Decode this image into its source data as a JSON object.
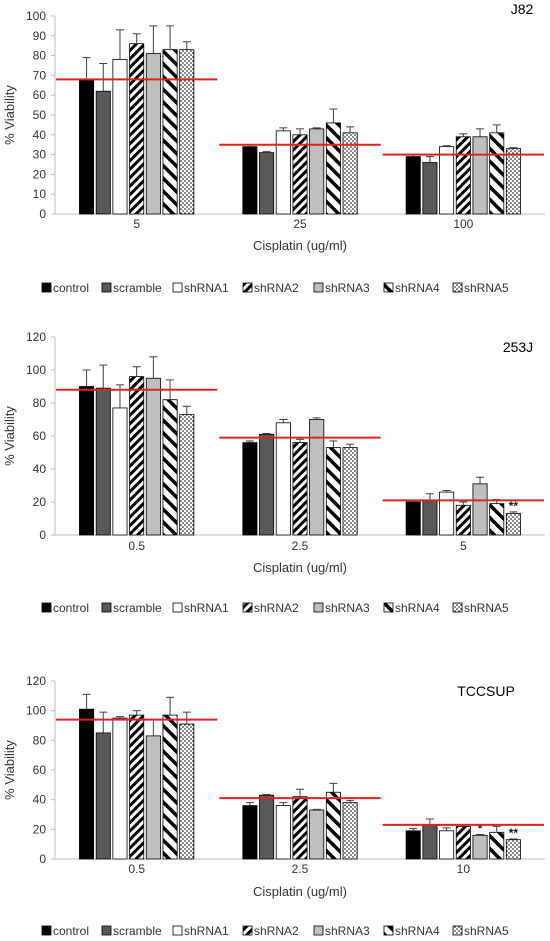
{
  "colors": {
    "control": "#000000",
    "scramble": "#595959",
    "shRNA1": "#ffffff",
    "shRNA2": "diagonal-stripes",
    "shRNA3": "#bfbfbf",
    "shRNA4": "wide-diagonal-stripes",
    "shRNA5": "dots",
    "reference_line": "#e32020",
    "axis": "#bfbfbf",
    "error_bar": "#404040"
  },
  "chart_data": [
    {
      "type": "bar",
      "title": "J82",
      "xlabel": "Cisplatin (ug/ml)",
      "ylabel": "% Viability",
      "ylim": [
        0,
        100
      ],
      "yticks": [
        "0",
        "10",
        "20",
        "30",
        "40",
        "50",
        "60",
        "70",
        "80",
        "90",
        "100"
      ],
      "categories": [
        "5",
        "25",
        "100"
      ],
      "series": [
        {
          "name": "control",
          "values": [
            68,
            34,
            29
          ],
          "errors": [
            11,
            1,
            1
          ]
        },
        {
          "name": "scramble",
          "values": [
            62,
            31,
            26
          ],
          "errors": [
            14,
            0.5,
            3
          ]
        },
        {
          "name": "shRNA1",
          "values": [
            78,
            42,
            34
          ],
          "errors": [
            15,
            1.5,
            0.5
          ]
        },
        {
          "name": "shRNA2",
          "values": [
            86,
            40,
            39
          ],
          "errors": [
            5,
            3,
            1.5
          ]
        },
        {
          "name": "shRNA3",
          "values": [
            81,
            43,
            39
          ],
          "errors": [
            14,
            0.5,
            4
          ]
        },
        {
          "name": "shRNA4",
          "values": [
            83,
            46,
            41
          ],
          "errors": [
            12,
            7,
            4
          ]
        },
        {
          "name": "shRNA5",
          "values": [
            83,
            41,
            33
          ],
          "errors": [
            4,
            3,
            0.5
          ]
        }
      ],
      "reference_lines": [
        68,
        35,
        30
      ],
      "significance": [
        "",
        "",
        "",
        "",
        "",
        "",
        ""
      ],
      "grid": false,
      "legend_position": "bottom"
    },
    {
      "type": "bar",
      "title": "253J",
      "xlabel": "Cisplatin (ug/ml)",
      "ylabel": "% Viability",
      "ylim": [
        0,
        120
      ],
      "yticks": [
        "0",
        "20",
        "40",
        "60",
        "80",
        "100",
        "120"
      ],
      "categories": [
        "0.5",
        "2.5",
        "5"
      ],
      "series": [
        {
          "name": "control",
          "values": [
            90,
            56,
            20
          ],
          "errors": [
            10,
            1,
            0.5
          ]
        },
        {
          "name": "scramble",
          "values": [
            89,
            61,
            21
          ],
          "errors": [
            14,
            0.5,
            4
          ]
        },
        {
          "name": "shRNA1",
          "values": [
            77,
            68,
            26
          ],
          "errors": [
            14,
            2,
            1
          ]
        },
        {
          "name": "shRNA2",
          "values": [
            96,
            56,
            18
          ],
          "errors": [
            6,
            2,
            2
          ]
        },
        {
          "name": "shRNA3",
          "values": [
            95,
            70,
            31
          ],
          "errors": [
            13,
            1,
            4
          ]
        },
        {
          "name": "shRNA4",
          "values": [
            82,
            53,
            19
          ],
          "errors": [
            12,
            4,
            2.5
          ]
        },
        {
          "name": "shRNA5",
          "values": [
            73,
            53,
            13
          ],
          "errors": [
            5,
            2,
            1
          ]
        }
      ],
      "reference_lines": [
        88,
        59,
        21
      ],
      "significance": [
        "",
        "",
        "",
        "",
        "",
        "",
        "**"
      ],
      "grid": false,
      "legend_position": "bottom"
    },
    {
      "type": "bar",
      "title": "TCCSUP",
      "xlabel": "Cisplatin (ug/ml)",
      "ylabel": "% Viability",
      "ylim": [
        0,
        120
      ],
      "yticks": [
        "0",
        "20",
        "40",
        "60",
        "80",
        "100",
        "120"
      ],
      "categories": [
        "0.5",
        "2.5",
        "10"
      ],
      "series": [
        {
          "name": "control",
          "values": [
            101,
            36,
            19
          ],
          "errors": [
            10,
            2,
            1.5
          ]
        },
        {
          "name": "scramble",
          "values": [
            85,
            43,
            23
          ],
          "errors": [
            14,
            0.5,
            4
          ]
        },
        {
          "name": "shRNA1",
          "values": [
            95,
            36,
            19
          ],
          "errors": [
            1,
            2,
            2
          ]
        },
        {
          "name": "shRNA2",
          "values": [
            97,
            42,
            22
          ],
          "errors": [
            3,
            5,
            1
          ]
        },
        {
          "name": "shRNA3",
          "values": [
            83,
            33,
            16
          ],
          "errors": [
            11,
            0.5,
            0.5
          ]
        },
        {
          "name": "shRNA4",
          "values": [
            97,
            45,
            18
          ],
          "errors": [
            12,
            6,
            4
          ]
        },
        {
          "name": "shRNA5",
          "values": [
            91,
            38,
            13
          ],
          "errors": [
            8,
            1.5,
            0.5
          ]
        }
      ],
      "reference_lines": [
        94,
        41,
        23
      ],
      "significance": [
        "",
        "",
        "",
        "",
        "*",
        "",
        "**"
      ],
      "grid": false,
      "legend_position": "bottom"
    }
  ]
}
